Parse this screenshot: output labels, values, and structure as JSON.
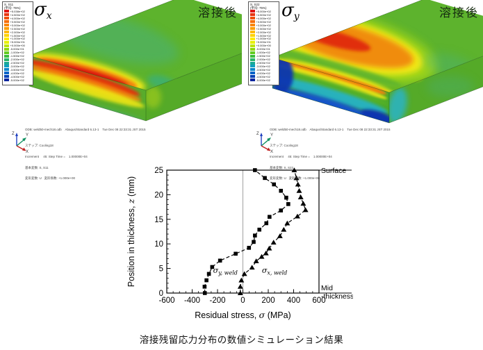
{
  "caption": "溶接残留応力分布の数値シミュレーション結果",
  "legend_colors": [
    "#e01414",
    "#e83410",
    "#f0500c",
    "#f66c08",
    "#fa8606",
    "#fd9f04",
    "#ffb902",
    "#ffd300",
    "#ffec00",
    "#e8f000",
    "#bce400",
    "#8fd810",
    "#62cc20",
    "#3cbe3c",
    "#28b46a",
    "#1aaa96",
    "#10a0be",
    "#0b86cc",
    "#0764c8",
    "#0442b6",
    "#02249e"
  ],
  "panels": {
    "left": {
      "sigma_sym": "σ",
      "sigma_sub": "x",
      "state_label": "溶接後",
      "legend": {
        "title": "S, S11",
        "subtitle": "(平均: 75%)",
        "values": [
          "+5.038e+02",
          "+4.500e+02",
          "+4.000e+02",
          "+3.500e+02",
          "+3.000e+02",
          "+2.500e+02",
          "+2.000e+02",
          "+1.500e+02",
          "+1.000e+02",
          "+5.000e+01",
          "+0.000e+00",
          "-5.000e+01",
          "-1.000e+02",
          "-1.500e+02",
          "-2.000e+02",
          "-2.500e+02",
          "-3.000e+02",
          "-3.500e+02",
          "-4.000e+02",
          "-4.500e+02",
          "-5.000e+02"
        ]
      },
      "footer": {
        "odb": "ODB: weld50-mech18.odb    Abaqus/Standard 6.13-1    Tue Dec 08 22:33:31 JST 2015",
        "step": "ステップ: Cooling18",
        "increment": "Increment     45: Step Time =    1.00000E+04",
        "primary": "基本変数: S, S11",
        "deformed": "変形変数: U   変形係数: +1.000e+00"
      },
      "triad": {
        "x": "X",
        "y": "Y",
        "z": "Z"
      }
    },
    "right": {
      "sigma_sym": "σ",
      "sigma_sub": "y",
      "state_label": "溶接後",
      "legend": {
        "title": "S, S22",
        "subtitle": "(平均: 75%)",
        "values": [
          "+5.000e+02",
          "+4.500e+02",
          "+4.000e+02",
          "+3.500e+02",
          "+3.000e+02",
          "+2.500e+02",
          "+2.000e+02",
          "+1.500e+02",
          "+1.000e+02",
          "+5.000e+01",
          "+0.000e+00",
          "-5.000e+01",
          "-1.000e+02",
          "-1.500e+02",
          "-2.000e+02",
          "-2.500e+02",
          "-3.000e+02",
          "-3.500e+02",
          "-4.000e+02",
          "-4.500e+02",
          "-5.000e+02"
        ]
      },
      "footer": {
        "odb": "ODB: weld50-mech18.odb    Abaqus/Standard 6.13-1    Tue Dec 08 22:33:31 JST 2015",
        "step": "ステップ: Cooling18",
        "increment": "Increment     45: Step Time =    1.00000E+04",
        "primary": "基本変数: S, S22",
        "deformed": "変形変数: U   変形係数: +1.000e+00"
      },
      "triad": {
        "x": "X",
        "y": "Y",
        "z": "Z"
      }
    }
  },
  "chart_data": {
    "type": "scatter",
    "xlabel_parts": [
      {
        "t": "Residual stress, "
      },
      {
        "t": "σ",
        "i": true
      },
      {
        "t": " (MPa)"
      }
    ],
    "ylabel_parts": [
      {
        "t": "Position in thickness, "
      },
      {
        "t": "z",
        "i": true
      },
      {
        "t": " (mm)"
      }
    ],
    "xlim": [
      -600,
      600
    ],
    "ylim": [
      0,
      25
    ],
    "x_ticks": [
      -600,
      -400,
      -200,
      0,
      200,
      400,
      600
    ],
    "y_ticks": [
      0,
      5,
      10,
      15,
      20,
      25
    ],
    "x_minor_step": 50,
    "y_minor_step": 1,
    "zero_line": true,
    "annotations": {
      "surface": "Surface",
      "mid1": "Mid",
      "mid2": "-thickness"
    },
    "series": [
      {
        "name": "sigma-y-weld",
        "label_sym": "σ",
        "label_sub": "y, weld",
        "label_x": -235,
        "label_z": 4.1,
        "marker": "square",
        "color": "#000000",
        "points": [
          [
            -300,
            0
          ],
          [
            -302,
            1.3
          ],
          [
            -287,
            2.6
          ],
          [
            -268,
            3.9
          ],
          [
            -242,
            5.3
          ],
          [
            -180,
            6.6
          ],
          [
            -57,
            8.0
          ],
          [
            48,
            9.2
          ],
          [
            85,
            10.4
          ],
          [
            95,
            11.7
          ],
          [
            130,
            12.9
          ],
          [
            185,
            14.2
          ],
          [
            210,
            15.5
          ],
          [
            300,
            16.8
          ],
          [
            358,
            18.1
          ],
          [
            342,
            19.4
          ],
          [
            300,
            20.8
          ],
          [
            245,
            22.1
          ],
          [
            173,
            23.4
          ],
          [
            95,
            25
          ]
        ]
      },
      {
        "name": "sigma-x-weld",
        "label_sym": "σ",
        "label_sub": "x, weld",
        "label_x": 150,
        "label_z": 4.1,
        "marker": "triangle",
        "color": "#000000",
        "points": [
          [
            -20,
            0
          ],
          [
            -20,
            1.3
          ],
          [
            -12,
            2.6
          ],
          [
            12,
            3.9
          ],
          [
            72,
            5.2
          ],
          [
            105,
            6.5
          ],
          [
            148,
            7.4
          ],
          [
            182,
            8.1
          ],
          [
            208,
            9.1
          ],
          [
            242,
            10.3
          ],
          [
            292,
            11.6
          ],
          [
            322,
            12.9
          ],
          [
            350,
            14.2
          ],
          [
            430,
            15.6
          ],
          [
            494,
            16.9
          ],
          [
            476,
            18.2
          ],
          [
            456,
            19.5
          ],
          [
            444,
            20.8
          ],
          [
            434,
            22.1
          ],
          [
            422,
            23.4
          ],
          [
            405,
            25
          ]
        ]
      }
    ]
  }
}
